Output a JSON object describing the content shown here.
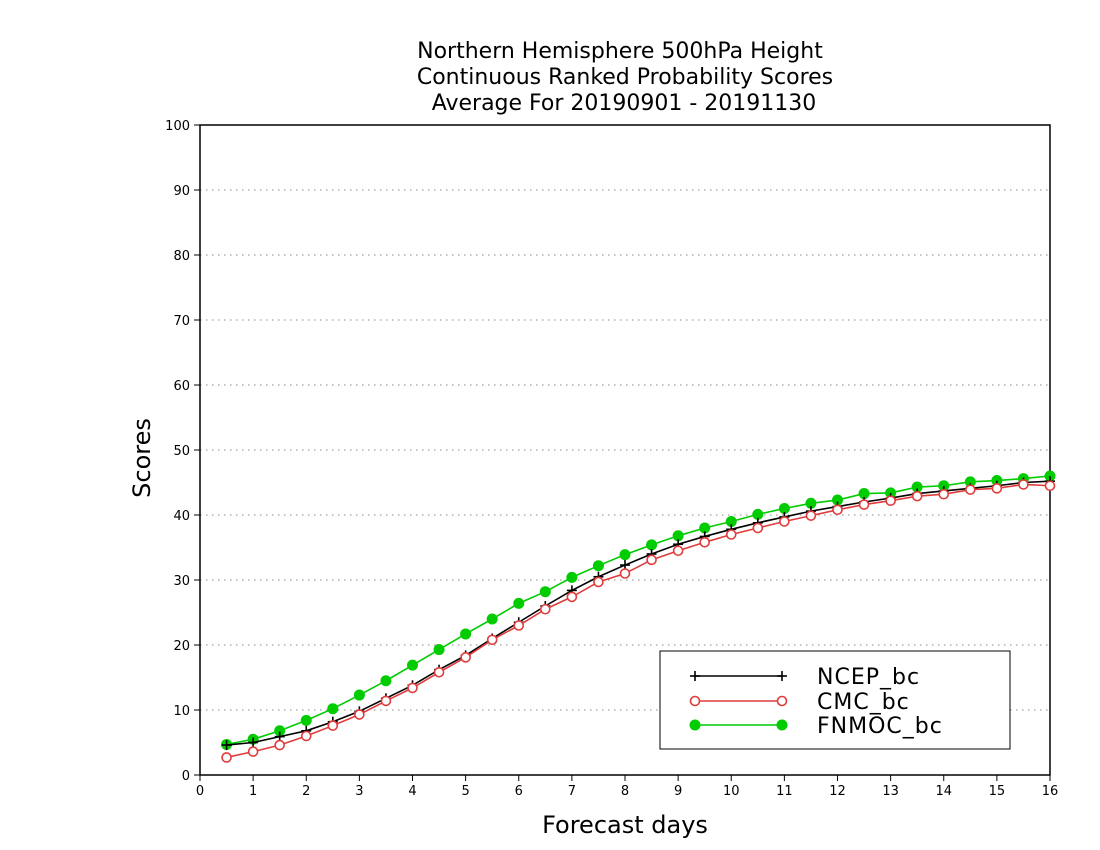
{
  "chart_data": {
    "type": "line",
    "title": [
      "Northern Hemisphere 500hPa Height",
      "Continuous Ranked Probability Scores",
      "Average For 20190901 - 20191130"
    ],
    "xlabel": "Forecast days",
    "ylabel": "Scores",
    "xlim": [
      0,
      16
    ],
    "ylim": [
      0,
      100
    ],
    "xticks": [
      "0",
      "1",
      "2",
      "3",
      "4",
      "5",
      "6",
      "7",
      "8",
      "9",
      "10",
      "11",
      "12",
      "13",
      "14",
      "15",
      "16"
    ],
    "yticks": [
      "0",
      "10",
      "20",
      "30",
      "40",
      "50",
      "60",
      "70",
      "80",
      "90",
      "100"
    ],
    "grid": "horizontal dotted",
    "legend_position": "bottom-right",
    "x": [
      0.5,
      1,
      1.5,
      2,
      2.5,
      3,
      3.5,
      4,
      4.5,
      5,
      5.5,
      6,
      6.5,
      7,
      7.5,
      8,
      8.5,
      9,
      9.5,
      10,
      10.5,
      11,
      11.5,
      12,
      12.5,
      13,
      13.5,
      14,
      14.5,
      15,
      15.5,
      16
    ],
    "series": [
      {
        "name": "NCEP_bc",
        "color": "#000000",
        "marker": "plus",
        "values": [
          4.6,
          5.0,
          5.9,
          6.8,
          8.2,
          9.8,
          11.8,
          13.8,
          16.2,
          18.4,
          21.0,
          23.5,
          26.0,
          28.4,
          30.5,
          32.3,
          34.0,
          35.5,
          36.7,
          37.8,
          38.8,
          39.7,
          40.6,
          41.3,
          42.0,
          42.6,
          43.3,
          43.7,
          44.1,
          44.5,
          45.0,
          45.2
        ]
      },
      {
        "name": "CMC_bc",
        "color": "#e03c3c",
        "marker": "open-circle",
        "values": [
          2.7,
          3.6,
          4.6,
          6.0,
          7.6,
          9.3,
          11.4,
          13.4,
          15.8,
          18.1,
          20.8,
          23.0,
          25.5,
          27.4,
          29.7,
          31.0,
          33.1,
          34.5,
          35.8,
          37.0,
          38.0,
          39.0,
          39.9,
          40.8,
          41.6,
          42.2,
          42.9,
          43.2,
          43.9,
          44.1,
          44.7,
          44.5
        ]
      },
      {
        "name": "FNMOC_bc",
        "color": "#00cc00",
        "marker": "filled-circle",
        "values": [
          4.7,
          5.5,
          6.8,
          8.4,
          10.2,
          12.3,
          14.5,
          16.9,
          19.3,
          21.7,
          24.0,
          26.4,
          28.2,
          30.4,
          32.2,
          33.9,
          35.4,
          36.8,
          38.0,
          39.0,
          40.1,
          41.0,
          41.8,
          42.3,
          43.3,
          43.4,
          44.3,
          44.5,
          45.1,
          45.3,
          45.6,
          46.0
        ]
      }
    ]
  }
}
